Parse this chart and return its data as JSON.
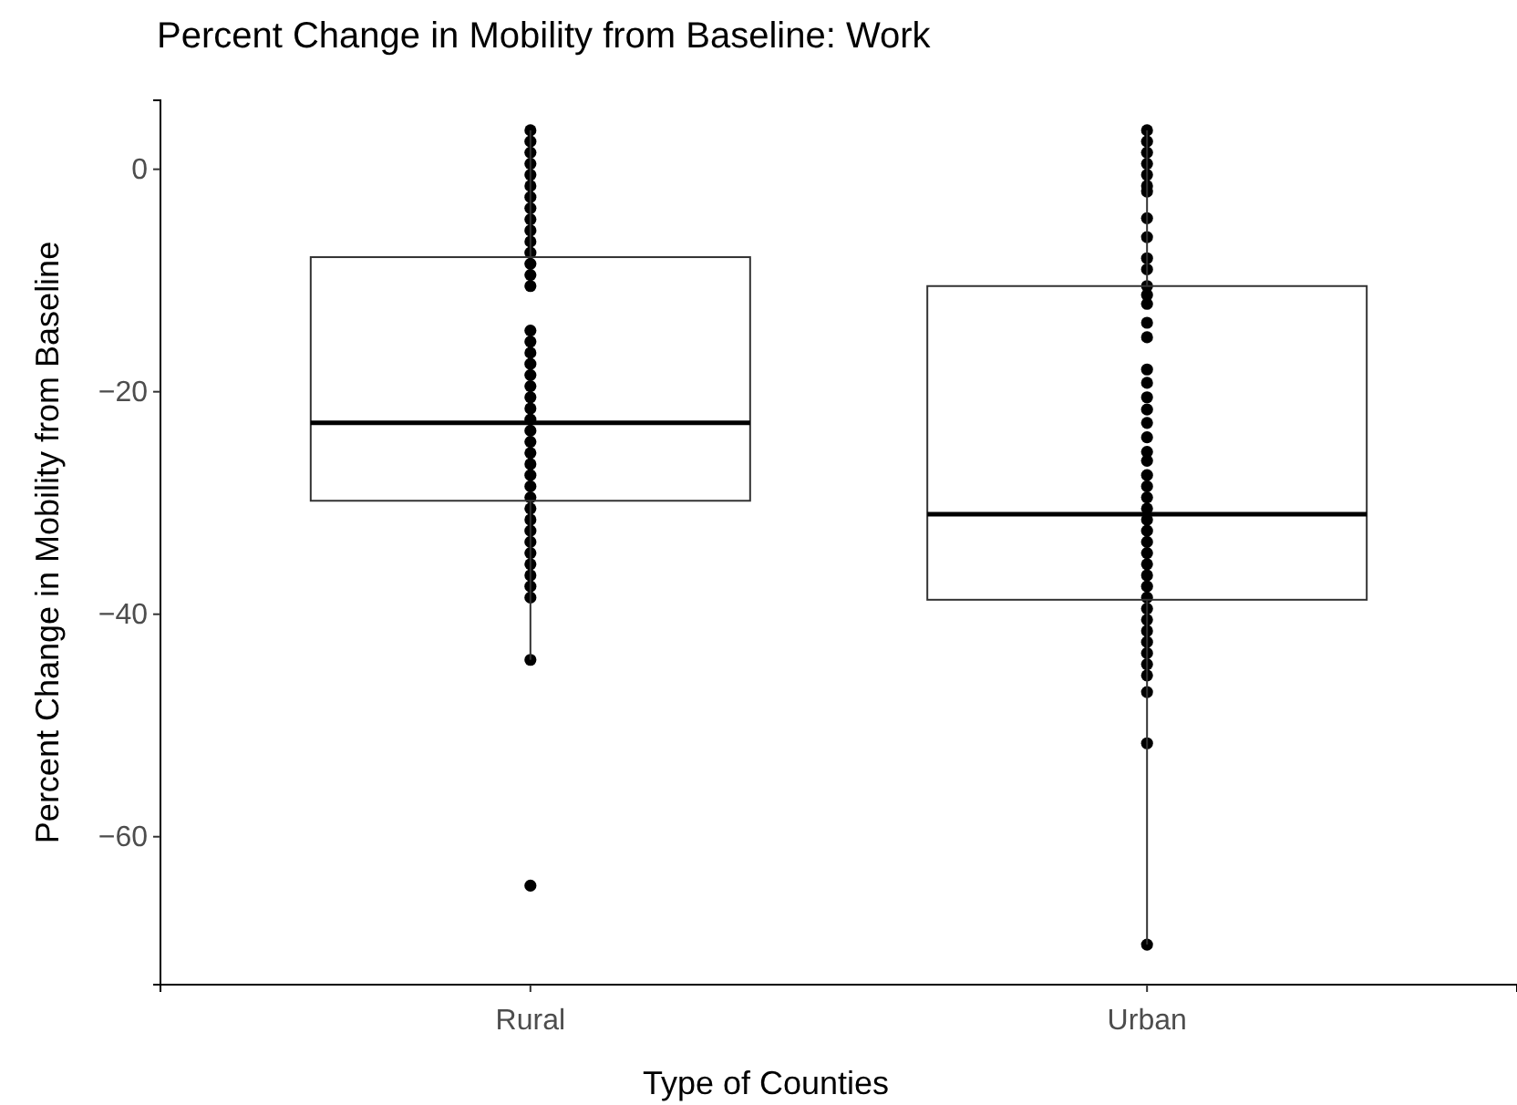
{
  "chart_data": {
    "type": "box",
    "title": "Percent Change in Mobility from Baseline: Work",
    "xlabel": "Type of Counties",
    "ylabel": "Percent Change in Mobility from Baseline",
    "categories": [
      "Rural",
      "Urban"
    ],
    "boxes": [
      {
        "low": -44.1,
        "q1": -29.8,
        "median": -22.8,
        "q3": -7.9,
        "high": 3.5,
        "outliers": [
          -64.4
        ]
      },
      {
        "low": -69.7,
        "q1": -38.7,
        "median": -31,
        "q3": -10.5,
        "high": 3.5
      }
    ],
    "ylim": [
      -73.3,
      6.2
    ],
    "yticks": [
      0,
      -20,
      -40,
      -60
    ],
    "grid": false,
    "series": [
      {
        "type": "scatter",
        "color": "#000000",
        "marker": "circle",
        "x": [
          "Rural",
          "Rural",
          "Rural",
          "Rural",
          "Rural",
          "Rural",
          "Rural",
          "Rural",
          "Rural",
          "Rural",
          "Rural",
          "Rural",
          "Rural",
          "Rural",
          "Rural",
          "Rural",
          "Rural",
          "Rural",
          "Rural",
          "Rural",
          "Rural",
          "Rural",
          "Rural",
          "Rural",
          "Rural",
          "Rural",
          "Rural",
          "Rural",
          "Rural",
          "Rural",
          "Rural",
          "Rural",
          "Rural",
          "Rural",
          "Rural",
          "Rural",
          "Rural",
          "Rural",
          "Rural",
          "Rural",
          "Rural",
          "Urban",
          "Urban",
          "Urban",
          "Urban",
          "Urban",
          "Urban",
          "Urban",
          "Urban",
          "Urban",
          "Urban",
          "Urban",
          "Urban",
          "Urban",
          "Urban",
          "Urban",
          "Urban",
          "Urban",
          "Urban",
          "Urban",
          "Urban",
          "Urban",
          "Urban",
          "Urban",
          "Urban",
          "Urban",
          "Urban",
          "Urban",
          "Urban",
          "Urban",
          "Urban",
          "Urban",
          "Urban",
          "Urban",
          "Urban",
          "Urban",
          "Urban",
          "Urban",
          "Urban",
          "Urban",
          "Urban",
          "Urban",
          "Urban",
          "Urban",
          "Urban",
          "Urban",
          "Urban"
        ],
        "values": [
          3.5,
          2.5,
          1.5,
          0.5,
          -0.5,
          -1.5,
          -2.5,
          -3.5,
          -4.5,
          -5.5,
          -6.5,
          -7.5,
          -8.5,
          -9.5,
          -10.5,
          -14.5,
          -15.5,
          -16.5,
          -17.5,
          -18.5,
          -19.5,
          -20.5,
          -21.5,
          -22.5,
          -23.5,
          -24.5,
          -25.5,
          -26.5,
          -27.5,
          -28.5,
          -29.5,
          -30.5,
          -31.5,
          -32.5,
          -33.5,
          -34.5,
          -35.5,
          -36.5,
          -37.5,
          -38.5,
          -44.1,
          3.5,
          2.5,
          1.5,
          0.5,
          -0.5,
          -1.5,
          -2,
          -4.4,
          -6.1,
          -8,
          -9,
          -10.5,
          -11.3,
          -12.1,
          -13.8,
          -15.1,
          -18,
          -19.2,
          -20.5,
          -21.6,
          -22.8,
          -24.1,
          -25.4,
          -26.2,
          -27.5,
          -28.5,
          -29.5,
          -30.5,
          -31.5,
          -32.5,
          -33.5,
          -34.5,
          -35.5,
          -36.5,
          -37.5,
          -38.5,
          -39.5,
          -40.5,
          -41.5,
          -42.5,
          -43.5,
          -44.5,
          -45.5,
          -47,
          -51.6,
          -69.7
        ]
      }
    ]
  }
}
